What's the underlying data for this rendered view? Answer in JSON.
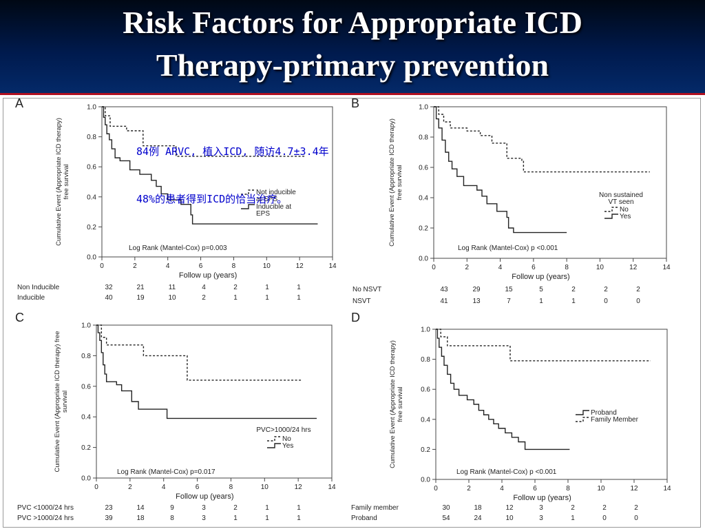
{
  "slide": {
    "title_line1": "Risk Factors for Appropriate ICD",
    "title_line2": "Therapy-primary prevention",
    "note_line1": "84例 ARVC, 植入ICD, 随访4.7±3.4年",
    "note_line2": "48%的患者得到ICD的恰当治疗。",
    "colors": {
      "title_bg": "#001a4d",
      "title_text": "#ffffff",
      "note_text": "#0000cc",
      "accent_line": "#b01020"
    }
  },
  "chart_data": [
    {
      "panel": "A",
      "type": "line",
      "ylabel_line1": "Cumulative Event (Appropriate ICD therapy)",
      "ylabel_line2": "free survival",
      "xlabel": "Follow up (years)",
      "xlim": [
        0,
        14
      ],
      "ylim": [
        0,
        1
      ],
      "xticks": [
        "0",
        "2",
        "4",
        "6",
        "8",
        "10",
        "12",
        "14"
      ],
      "yticks": [
        "0.0",
        "0.2",
        "0.4",
        "0.6",
        "0.8",
        "1.0"
      ],
      "annotation": "Log Rank (Mantel-Cox) p=0.003",
      "legend_title": "",
      "legend_placement": "right",
      "series": [
        {
          "name": "Not inducible at EPS",
          "label_lines": [
            "Not inducible",
            "at EPS"
          ],
          "style": "dashed",
          "points": [
            [
              0,
              1.0
            ],
            [
              0.2,
              0.94
            ],
            [
              0.5,
              0.87
            ],
            [
              1.5,
              0.84
            ],
            [
              2.5,
              0.74
            ],
            [
              4.2,
              0.74
            ],
            [
              4.5,
              0.67
            ],
            [
              12.3,
              0.67
            ]
          ]
        },
        {
          "name": "Inducible at EPS",
          "label_lines": [
            "Inducible at",
            "EPS"
          ],
          "style": "solid",
          "points": [
            [
              0,
              1.0
            ],
            [
              0.1,
              0.93
            ],
            [
              0.2,
              0.88
            ],
            [
              0.3,
              0.82
            ],
            [
              0.45,
              0.78
            ],
            [
              0.6,
              0.72
            ],
            [
              0.8,
              0.66
            ],
            [
              1.1,
              0.64
            ],
            [
              1.7,
              0.58
            ],
            [
              2.3,
              0.55
            ],
            [
              3.0,
              0.51
            ],
            [
              3.3,
              0.47
            ],
            [
              3.6,
              0.42
            ],
            [
              4.0,
              0.38
            ],
            [
              4.8,
              0.35
            ],
            [
              5.4,
              0.28
            ],
            [
              5.5,
              0.22
            ],
            [
              13.1,
              0.22
            ]
          ]
        }
      ],
      "risk_table": {
        "rows": [
          {
            "label": "Non Inducible",
            "values": [
              "32",
              "21",
              "11",
              "4",
              "2",
              "1",
              "1"
            ]
          },
          {
            "label": "Inducible",
            "values": [
              "40",
              "19",
              "10",
              "2",
              "1",
              "1",
              "1"
            ]
          }
        ]
      }
    },
    {
      "panel": "B",
      "type": "line",
      "ylabel_line1": "Cumulative Event (Appropriate ICD therapy)",
      "ylabel_line2": "free survival",
      "xlabel": "Follow up (years)",
      "xlim": [
        0,
        14
      ],
      "ylim": [
        0,
        1
      ],
      "xticks": [
        "0",
        "2",
        "4",
        "6",
        "8",
        "10",
        "12",
        "14"
      ],
      "yticks": [
        "0.0",
        "0.2",
        "0.4",
        "0.6",
        "0.8",
        "1.0"
      ],
      "annotation": "Log Rank (Mantel-Cox) p <0.001",
      "legend_title": "Non sustained VT seen",
      "legend_title_lines": [
        "Non sustained",
        "VT seen"
      ],
      "legend_placement": "right",
      "series": [
        {
          "name": "No",
          "label_lines": [
            "No"
          ],
          "style": "dashed",
          "points": [
            [
              0,
              1.0
            ],
            [
              0.3,
              0.95
            ],
            [
              0.6,
              0.9
            ],
            [
              1.0,
              0.86
            ],
            [
              1.9,
              0.86
            ],
            [
              2.0,
              0.84
            ],
            [
              2.8,
              0.81
            ],
            [
              3.5,
              0.76
            ],
            [
              4.4,
              0.66
            ],
            [
              5.3,
              0.64
            ],
            [
              5.4,
              0.57
            ],
            [
              13.0,
              0.57
            ]
          ]
        },
        {
          "name": "Yes",
          "label_lines": [
            "Yes"
          ],
          "style": "solid",
          "points": [
            [
              0,
              1.0
            ],
            [
              0.15,
              0.92
            ],
            [
              0.3,
              0.86
            ],
            [
              0.5,
              0.78
            ],
            [
              0.7,
              0.7
            ],
            [
              0.9,
              0.64
            ],
            [
              1.1,
              0.59
            ],
            [
              1.4,
              0.54
            ],
            [
              1.8,
              0.48
            ],
            [
              2.6,
              0.45
            ],
            [
              2.9,
              0.41
            ],
            [
              3.2,
              0.36
            ],
            [
              3.8,
              0.31
            ],
            [
              4.4,
              0.27
            ],
            [
              4.5,
              0.2
            ],
            [
              4.8,
              0.17
            ],
            [
              8.0,
              0.17
            ]
          ]
        }
      ],
      "risk_table": {
        "rows": [
          {
            "label": "No NSVT",
            "values": [
              "43",
              "29",
              "15",
              "5",
              "2",
              "2",
              "2"
            ]
          },
          {
            "label": "NSVT",
            "values": [
              "41",
              "13",
              "7",
              "1",
              "1",
              "0",
              "0"
            ]
          }
        ]
      }
    },
    {
      "panel": "C",
      "type": "line",
      "ylabel_line1": "Cumulative Event (Appropriate ICD therapy) free",
      "ylabel_line2": "survival",
      "xlabel": "Follow up (years)",
      "xlim": [
        0,
        14
      ],
      "ylim": [
        0,
        1
      ],
      "xticks": [
        "0",
        "2",
        "4",
        "6",
        "8",
        "10",
        "12",
        "14"
      ],
      "yticks": [
        "0.0",
        "0.2",
        "0.4",
        "0.6",
        "0.8",
        "1.0"
      ],
      "annotation": "Log Rank (Mantel-Cox) p=0.017",
      "legend_title": "PVC>1000/24 hrs",
      "legend_title_lines": [
        "PVC>1000/24 hrs"
      ],
      "legend_placement": "right",
      "series": [
        {
          "name": "No",
          "label_lines": [
            "No"
          ],
          "style": "dashed",
          "points": [
            [
              0,
              1.0
            ],
            [
              0.3,
              0.92
            ],
            [
              0.6,
              0.87
            ],
            [
              2.6,
              0.87
            ],
            [
              2.8,
              0.8
            ],
            [
              5.2,
              0.8
            ],
            [
              5.4,
              0.64
            ],
            [
              12.2,
              0.64
            ]
          ]
        },
        {
          "name": "Yes",
          "label_lines": [
            "Yes"
          ],
          "style": "solid",
          "points": [
            [
              0,
              1.0
            ],
            [
              0.1,
              0.95
            ],
            [
              0.2,
              0.9
            ],
            [
              0.3,
              0.82
            ],
            [
              0.4,
              0.74
            ],
            [
              0.5,
              0.68
            ],
            [
              0.6,
              0.63
            ],
            [
              1.2,
              0.61
            ],
            [
              1.5,
              0.57
            ],
            [
              2.1,
              0.5
            ],
            [
              2.5,
              0.45
            ],
            [
              4.2,
              0.39
            ],
            [
              13.1,
              0.39
            ]
          ]
        }
      ],
      "risk_table": {
        "rows": [
          {
            "label": "PVC <1000/24 hrs",
            "values": [
              "23",
              "14",
              "9",
              "3",
              "2",
              "1",
              "1"
            ]
          },
          {
            "label": "PVC >1000/24 hrs",
            "values": [
              "39",
              "18",
              "8",
              "3",
              "1",
              "1",
              "1"
            ]
          }
        ]
      }
    },
    {
      "panel": "D",
      "type": "line",
      "ylabel_line1": "Cumulative Event (Appropriate ICD therapy)",
      "ylabel_line2": "free survival",
      "xlabel": "Follow up (years)",
      "xlim": [
        0,
        14
      ],
      "ylim": [
        0,
        1
      ],
      "xticks": [
        "0",
        "2",
        "4",
        "6",
        "8",
        "10",
        "12",
        "14"
      ],
      "yticks": [
        "0.0",
        "0.2",
        "0.4",
        "0.6",
        "0.8",
        "1.0"
      ],
      "annotation": "Log Rank (Mantel-Cox) p <0.001",
      "legend_title": "",
      "legend_placement": "right",
      "series": [
        {
          "name": "Proband",
          "label_lines": [
            "Proband"
          ],
          "style": "solid",
          "points": [
            [
              0,
              1.0
            ],
            [
              0.1,
              0.94
            ],
            [
              0.2,
              0.88
            ],
            [
              0.35,
              0.82
            ],
            [
              0.5,
              0.76
            ],
            [
              0.7,
              0.7
            ],
            [
              0.9,
              0.64
            ],
            [
              1.1,
              0.6
            ],
            [
              1.4,
              0.56
            ],
            [
              1.9,
              0.53
            ],
            [
              2.3,
              0.5
            ],
            [
              2.6,
              0.46
            ],
            [
              2.9,
              0.43
            ],
            [
              3.2,
              0.4
            ],
            [
              3.5,
              0.37
            ],
            [
              3.8,
              0.34
            ],
            [
              4.2,
              0.31
            ],
            [
              4.6,
              0.28
            ],
            [
              5.0,
              0.25
            ],
            [
              5.4,
              0.2
            ],
            [
              8.1,
              0.2
            ]
          ]
        },
        {
          "name": "Family Member",
          "label_lines": [
            "Family Member"
          ],
          "style": "dashed",
          "points": [
            [
              0,
              1.0
            ],
            [
              0.3,
              0.95
            ],
            [
              0.7,
              0.89
            ],
            [
              4.3,
              0.89
            ],
            [
              4.5,
              0.79
            ],
            [
              13.0,
              0.79
            ]
          ]
        }
      ],
      "risk_table": {
        "rows": [
          {
            "label": "Family  member",
            "values": [
              "30",
              "18",
              "12",
              "3",
              "2",
              "2",
              "2"
            ]
          },
          {
            "label": "Proband",
            "values": [
              "54",
              "24",
              "10",
              "3",
              "1",
              "0",
              "0"
            ]
          }
        ]
      }
    }
  ]
}
